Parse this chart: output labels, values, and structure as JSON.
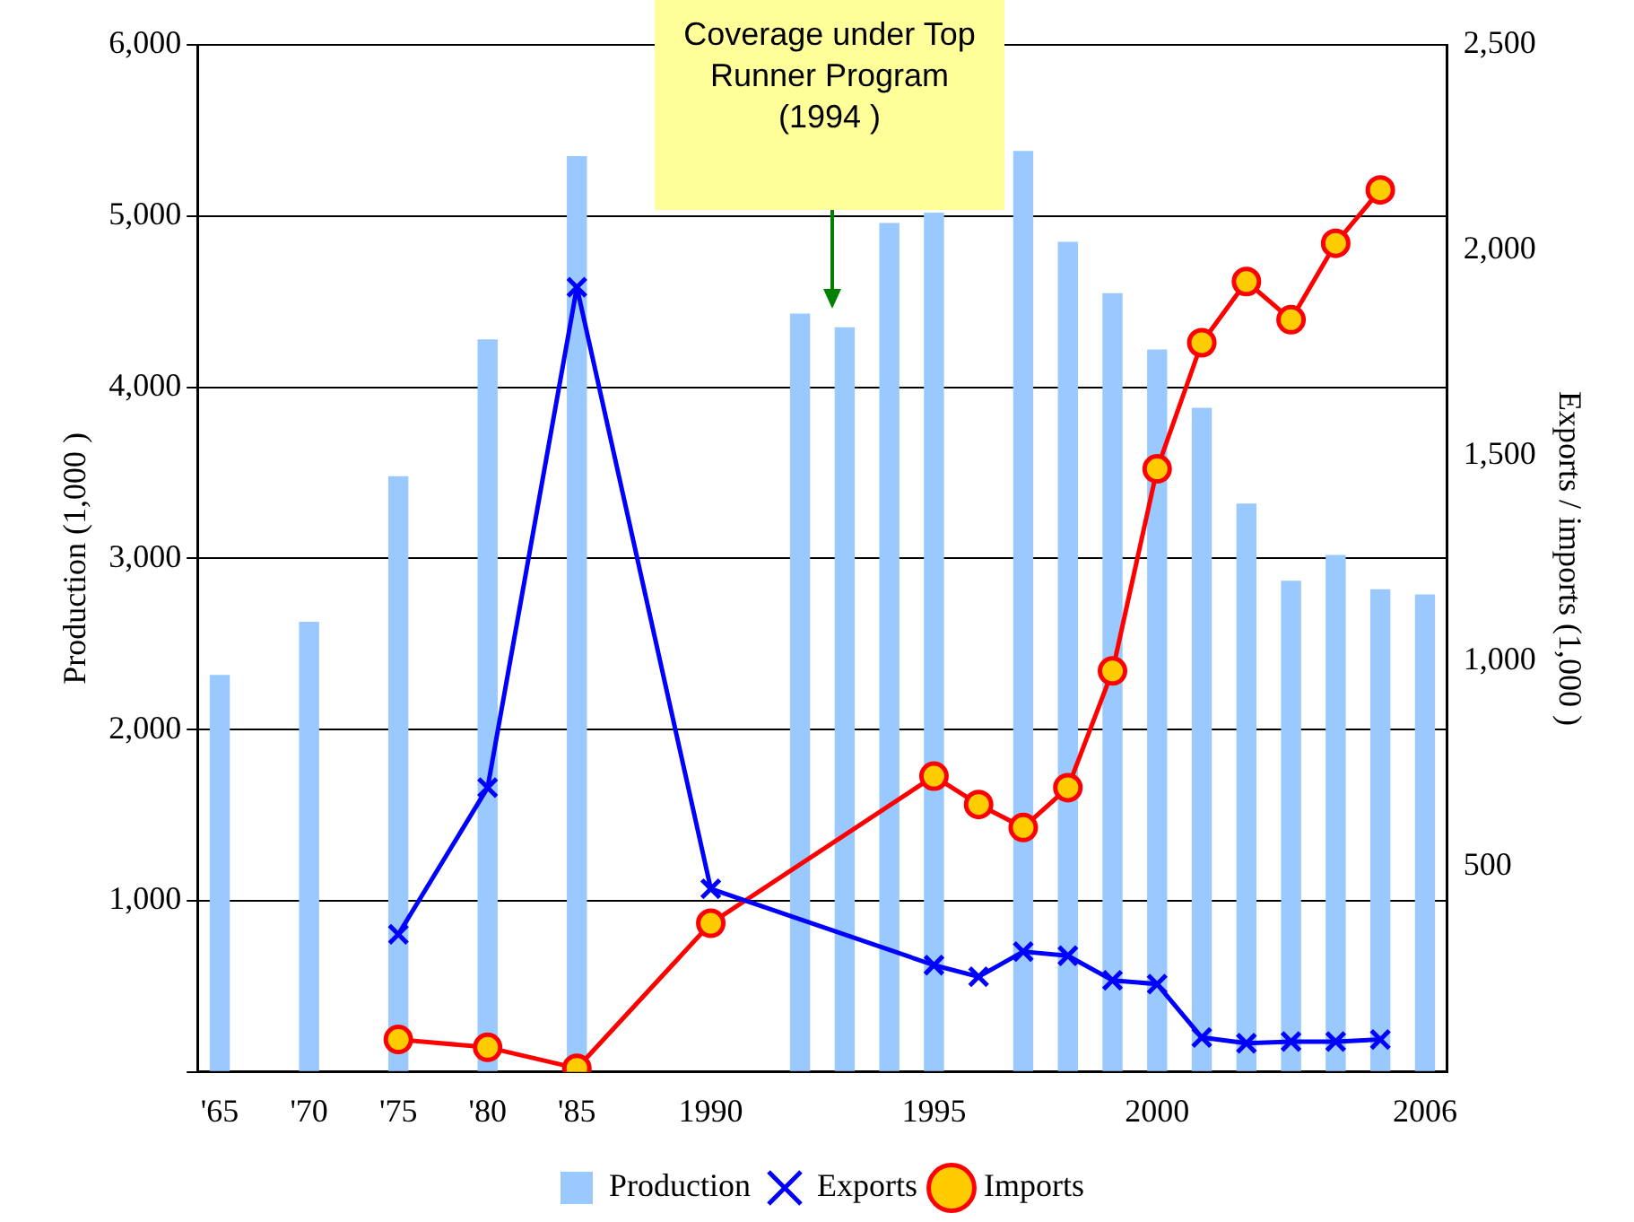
{
  "chart_data": {
    "type": "bar",
    "categories": [
      "'65",
      null,
      "'70",
      null,
      "'75",
      null,
      "'80",
      null,
      "'85",
      null,
      null,
      "1990",
      null,
      null,
      null,
      null,
      "1995",
      null,
      null,
      null,
      null,
      "2000",
      null,
      null,
      null,
      null,
      null,
      "2006"
    ],
    "ylabel": "Production (1,000 )",
    "y2label": "Exports / imports (1,000 )",
    "ylim": [
      0,
      6000
    ],
    "yticks": [
      {
        "value": 0,
        "label": null
      },
      {
        "value": 1000,
        "label": "1,000"
      },
      {
        "value": 2000,
        "label": "2,000"
      },
      {
        "value": 3000,
        "label": "3,000"
      },
      {
        "value": 4000,
        "label": "4,000"
      },
      {
        "value": 5000,
        "label": "5,000"
      },
      {
        "value": 6000,
        "label": "6,000"
      }
    ],
    "y2lim": [
      0,
      2500
    ],
    "y2ticks": [
      {
        "value": 0,
        "label": null
      },
      500,
      {
        "value": 1000,
        "label": "1,000"
      },
      {
        "value": 1500,
        "label": "1,500"
      },
      {
        "value": 2000,
        "label": "2,000"
      },
      {
        "value": 2500,
        "label": "2,500"
      }
    ],
    "grid": "y",
    "legend": "bottom",
    "annotations": [
      "Coverage under Top Runner Program (1994 )"
    ],
    "series": [
      {
        "name": "Production",
        "color": "#99c9ff",
        "values": [
          2320,
          null,
          2630,
          null,
          3480,
          null,
          4280,
          null,
          5350,
          null,
          null,
          null,
          null,
          4430,
          4350,
          4960,
          5020,
          null,
          5380,
          4850,
          4550,
          4220,
          3880,
          3320,
          2870,
          3020,
          2820,
          2790
        ]
      },
      {
        "name": "Exports",
        "type": "line",
        "axis": "y2",
        "marker": "cross",
        "line_style": "solid",
        "color": "#0000ff",
        "values": [
          null,
          null,
          null,
          null,
          335,
          null,
          692,
          null,
          1910,
          null,
          null,
          446,
          null,
          null,
          null,
          null,
          260,
          232,
          293,
          283,
          223,
          214,
          84,
          70,
          74,
          74,
          79,
          null
        ]
      },
      {
        "name": "Imports",
        "type": "line",
        "axis": "y2",
        "marker": "circle",
        "line_style": "solid",
        "color": "#ff0000",
        "values": [
          null,
          null,
          null,
          null,
          79,
          null,
          60,
          null,
          9,
          null,
          null,
          362,
          null,
          null,
          null,
          null,
          720,
          651,
          595,
          692,
          976,
          1468,
          1775,
          1924,
          1831,
          2017,
          2147,
          null
        ]
      }
    ]
  }
}
